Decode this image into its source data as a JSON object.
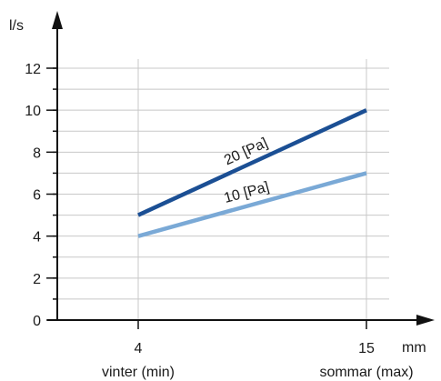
{
  "chart_data": {
    "type": "line",
    "ylabel": "l/s",
    "xunit": "mm",
    "ylim": [
      0,
      12
    ],
    "yticks": [
      0,
      2,
      4,
      6,
      8,
      10,
      12
    ],
    "xticks": [
      {
        "value": 4,
        "label": "4",
        "sublabel": "vinter (min)"
      },
      {
        "value": 15,
        "label": "15",
        "sublabel": "sommar (max)"
      }
    ],
    "grid": true,
    "series": [
      {
        "name": "20 [Pa]",
        "color": "#1b4f94",
        "x": [
          4,
          15
        ],
        "y": [
          5,
          10
        ]
      },
      {
        "name": "10 [Pa]",
        "color": "#7aa9d6",
        "x": [
          4,
          15
        ],
        "y": [
          4,
          7
        ]
      }
    ]
  }
}
